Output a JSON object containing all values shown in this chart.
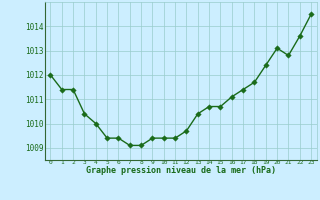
{
  "x": [
    0,
    1,
    2,
    3,
    4,
    5,
    6,
    7,
    8,
    9,
    10,
    11,
    12,
    13,
    14,
    15,
    16,
    17,
    18,
    19,
    20,
    21,
    22,
    23
  ],
  "y": [
    1012.0,
    1011.4,
    1011.4,
    1010.4,
    1010.0,
    1009.4,
    1009.4,
    1009.1,
    1009.1,
    1009.4,
    1009.4,
    1009.4,
    1009.7,
    1010.4,
    1010.7,
    1010.7,
    1011.1,
    1011.4,
    1011.7,
    1012.4,
    1013.1,
    1012.8,
    1013.6,
    1014.5
  ],
  "line_color": "#1a6b1a",
  "marker_color": "#1a6b1a",
  "bg_color": "#cceeff",
  "grid_color": "#99cccc",
  "xlabel": "Graphe pression niveau de la mer (hPa)",
  "xlabel_color": "#1a6b1a",
  "tick_color": "#1a6b1a",
  "ylim": [
    1008.5,
    1015.0
  ],
  "yticks": [
    1009,
    1010,
    1011,
    1012,
    1013,
    1014
  ],
  "marker_size": 2.8,
  "line_width": 1.0
}
